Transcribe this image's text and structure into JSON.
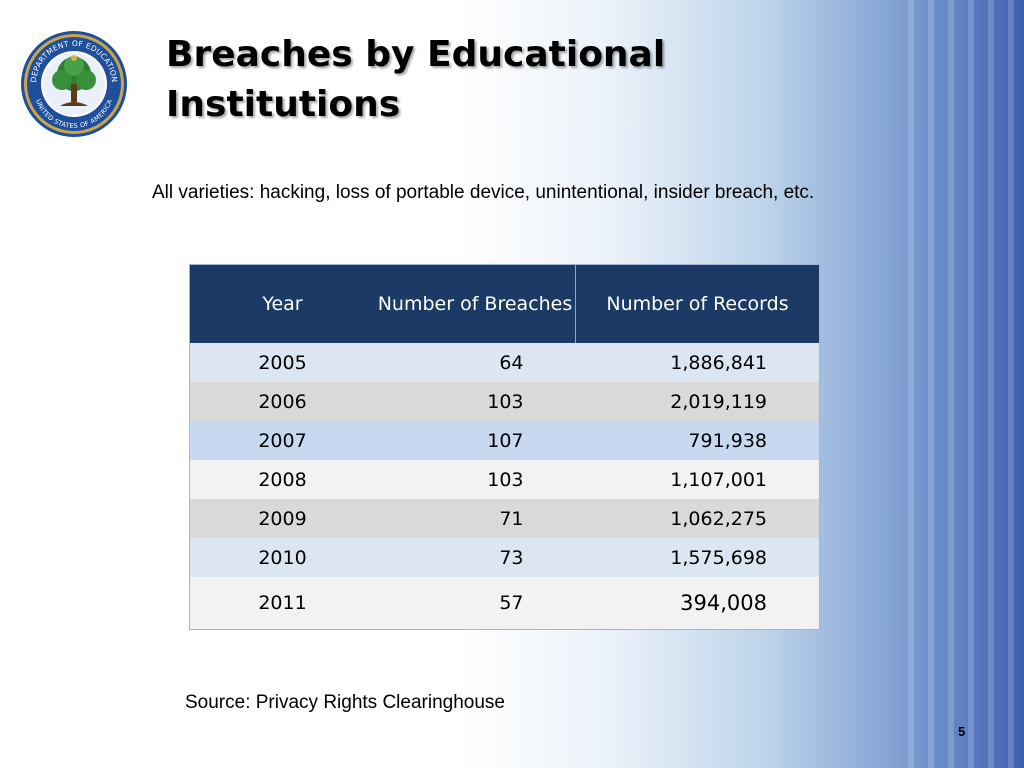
{
  "slide": {
    "title_line1": "Breaches by Educational",
    "title_line2": "Institutions",
    "subtitle": "All varieties:  hacking, loss of portable device, unintentional, insider breach, etc.",
    "source": "Source:  Privacy Rights Clearinghouse",
    "slide_number": "5"
  },
  "seal": {
    "text_top": "DEPARTMENT OF EDUCATION",
    "text_bottom": "UNITED STATES OF AMERICA"
  },
  "table": {
    "headers": [
      "Year",
      "Number of Breaches",
      "Number of Records"
    ],
    "rows": [
      [
        "2005",
        "64",
        "1,886,841"
      ],
      [
        "2006",
        "103",
        "2,019,119"
      ],
      [
        "2007",
        "107",
        "791,938"
      ],
      [
        "2008",
        "103",
        "1,107,001"
      ],
      [
        "2009",
        "71",
        "1,062,275"
      ],
      [
        "2010",
        "73",
        "1,575,698"
      ],
      [
        "2011",
        "57",
        "394,008"
      ]
    ]
  },
  "colors": {
    "header_bg": "#1b3a66",
    "accent_blue": "#3e5fb2"
  }
}
